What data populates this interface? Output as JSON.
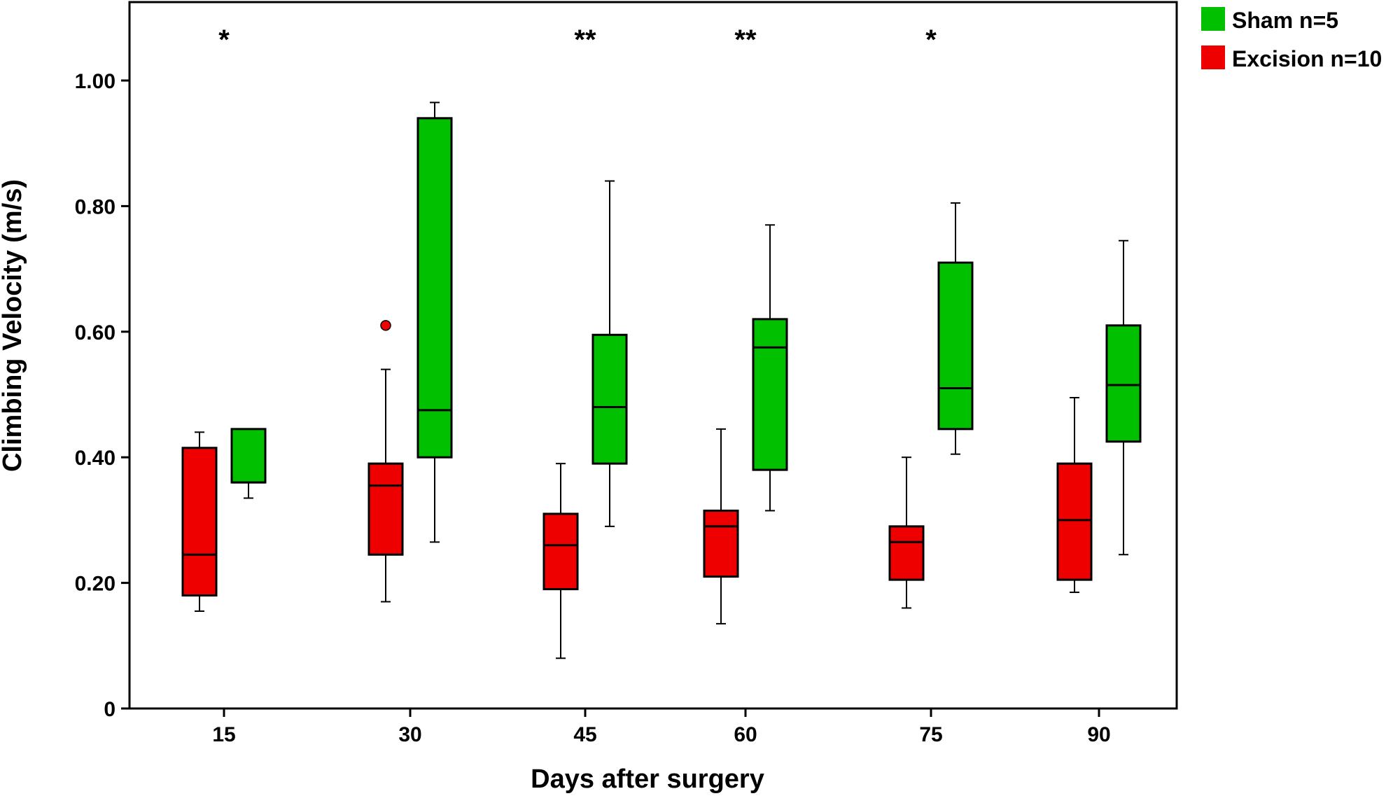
{
  "chart_data": {
    "type": "boxplot",
    "title": "",
    "xlabel": "Days after surgery",
    "ylabel": "Climbing Velocity (m/s)",
    "ylim": [
      0,
      1.13
    ],
    "yticks": [
      {
        "value": 0,
        "label": "0"
      },
      {
        "value": 0.2,
        "label": "0.20"
      },
      {
        "value": 0.4,
        "label": "0.40"
      },
      {
        "value": 0.6,
        "label": "0.60"
      },
      {
        "value": 0.8,
        "label": "0.80"
      },
      {
        "value": 1.0,
        "label": "1.00"
      }
    ],
    "categories": [
      "15",
      "30",
      "45",
      "60",
      "75",
      "90"
    ],
    "legend": {
      "placement": "top-right, outside plot",
      "entries": [
        {
          "label": "Sham n=5",
          "color": "#00c000"
        },
        {
          "label": "Excision n=10",
          "color": "#ee0000"
        }
      ]
    },
    "significance": [
      {
        "category": "15",
        "label": "*"
      },
      {
        "category": "30",
        "label": ""
      },
      {
        "category": "45",
        "label": "**"
      },
      {
        "category": "60",
        "label": "**"
      },
      {
        "category": "75",
        "label": "*"
      },
      {
        "category": "90",
        "label": ""
      }
    ],
    "series": [
      {
        "name": "Excision n=10",
        "color": "#ee0000",
        "boxes": [
          {
            "min": 0.155,
            "q1": 0.18,
            "median": 0.245,
            "q3": 0.415,
            "max": 0.44,
            "outliers": []
          },
          {
            "min": 0.17,
            "q1": 0.245,
            "median": 0.355,
            "q3": 0.39,
            "max": 0.54,
            "outliers": [
              0.61
            ]
          },
          {
            "min": 0.08,
            "q1": 0.19,
            "median": 0.26,
            "q3": 0.31,
            "max": 0.39,
            "outliers": []
          },
          {
            "min": 0.135,
            "q1": 0.21,
            "median": 0.29,
            "q3": 0.315,
            "max": 0.445,
            "outliers": []
          },
          {
            "min": 0.16,
            "q1": 0.205,
            "median": 0.265,
            "q3": 0.29,
            "max": 0.4,
            "outliers": []
          },
          {
            "min": 0.185,
            "q1": 0.205,
            "median": 0.3,
            "q3": 0.39,
            "max": 0.495,
            "outliers": []
          }
        ]
      },
      {
        "name": "Sham n=5",
        "color": "#00c000",
        "boxes": [
          {
            "min": 0.335,
            "q1": 0.36,
            "median": 0.36,
            "q3": 0.445,
            "max": 0.445,
            "outliers": []
          },
          {
            "min": 0.265,
            "q1": 0.4,
            "median": 0.475,
            "q3": 0.94,
            "max": 0.965,
            "outliers": []
          },
          {
            "min": 0.29,
            "q1": 0.39,
            "median": 0.48,
            "q3": 0.595,
            "max": 0.84,
            "outliers": []
          },
          {
            "min": 0.315,
            "q1": 0.38,
            "median": 0.575,
            "q3": 0.62,
            "max": 0.77,
            "outliers": []
          },
          {
            "min": 0.405,
            "q1": 0.445,
            "median": 0.51,
            "q3": 0.71,
            "max": 0.805,
            "outliers": []
          },
          {
            "min": 0.245,
            "q1": 0.425,
            "median": 0.515,
            "q3": 0.61,
            "max": 0.745,
            "outliers": []
          }
        ]
      }
    ]
  }
}
